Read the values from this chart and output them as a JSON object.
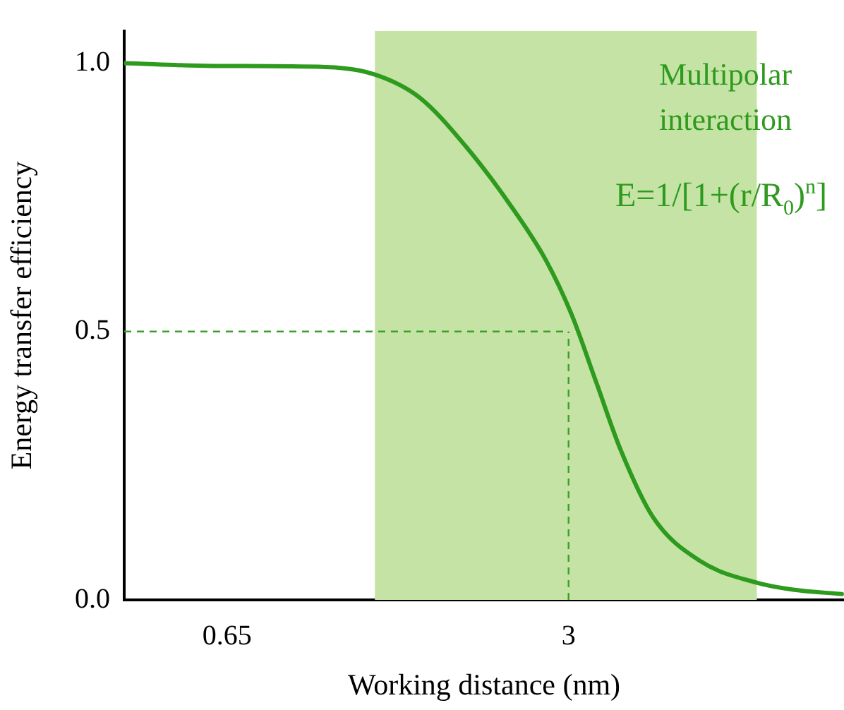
{
  "chart_data": {
    "type": "line",
    "xlabel": "Working distance (nm)",
    "ylabel": "Energy transfer efficiency",
    "log": "x",
    "xlim": [
      0.41,
      10.3
    ],
    "xticks": [
      0.65,
      3
    ],
    "ylim": [
      0,
      1.06
    ],
    "yticks": [
      {
        "value": 0,
        "label": "0.0"
      },
      {
        "value": 0.5,
        "label": "0.5"
      },
      {
        "value": 1,
        "label": "1.0"
      }
    ],
    "series": [
      {
        "color": "#2e9a1e",
        "x": [
          0.41,
          0.61,
          1.01,
          1.26,
          1.54,
          1.89,
          2.33,
          2.71,
          3.04,
          3.4,
          3.79,
          4.38,
          5.42,
          6.97,
          8.2,
          10.2
        ],
        "values": [
          1.0,
          0.995,
          0.993,
          0.979,
          0.936,
          0.846,
          0.731,
          0.633,
          0.532,
          0.404,
          0.279,
          0.154,
          0.072,
          0.032,
          0.019,
          0.011
        ]
      }
    ],
    "bands": [
      {
        "axis": "x",
        "from": 1.26,
        "to": 6.97,
        "label": "Multipolar interaction",
        "color": "#c5e3a5"
      }
    ],
    "ref_lines": [
      {
        "axis": "y",
        "value": 0.5,
        "color": "#3aa02a",
        "line_style": "dashed"
      },
      {
        "axis": "x",
        "value": 3,
        "color": "#3aa02a",
        "line_style": "dashed"
      }
    ],
    "annotations": [
      "E=1/[1+(r/R$_{0}$)$^{n}$]"
    ],
    "grid": false,
    "legend": false,
    "marker": "none",
    "line_style": "solid"
  }
}
